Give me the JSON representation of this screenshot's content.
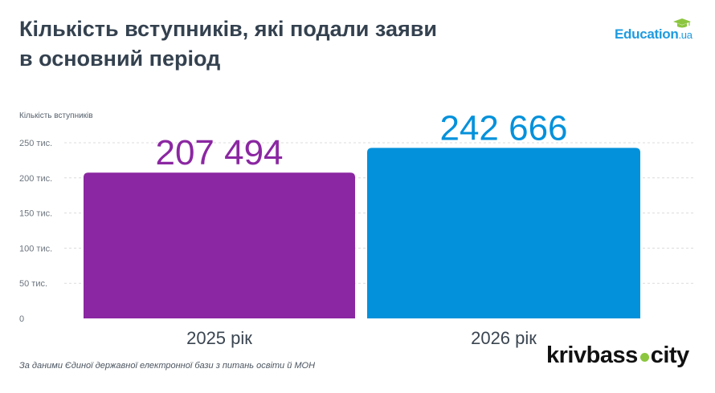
{
  "title": {
    "line1": "Кількість вступників, які подали заяви",
    "line2": "в основний період"
  },
  "brand": {
    "name": "Education",
    "suffix": ".ua"
  },
  "source": "За даними Єдиної державної електронної бази з питань освіти й МОН",
  "publisher": {
    "part1": "krivbass",
    "part2": "city"
  },
  "colors": {
    "bar_2025": "#8b27a2",
    "bar_2026": "#0391db",
    "grid": "#dcdcdc",
    "text": "#34414f",
    "brand": "#1e9be0",
    "logo_dot": "#8cc63f"
  },
  "chart_data": {
    "type": "bar",
    "ylabel": "Кількість вступників",
    "categories": [
      "2025 рік",
      "2026 рік"
    ],
    "values": [
      207494,
      242666
    ],
    "value_labels": [
      "207 494",
      "242 666"
    ],
    "bar_colors": [
      "#8b27a2",
      "#0391db"
    ],
    "ylim": [
      0,
      250000
    ],
    "yticks": [
      0,
      50000,
      100000,
      150000,
      200000,
      250000
    ],
    "ytick_labels": [
      "0",
      "50 тис.",
      "100 тис.",
      "150 тис.",
      "200 тис.",
      "250 тис."
    ],
    "grid": true,
    "legend": "none"
  }
}
